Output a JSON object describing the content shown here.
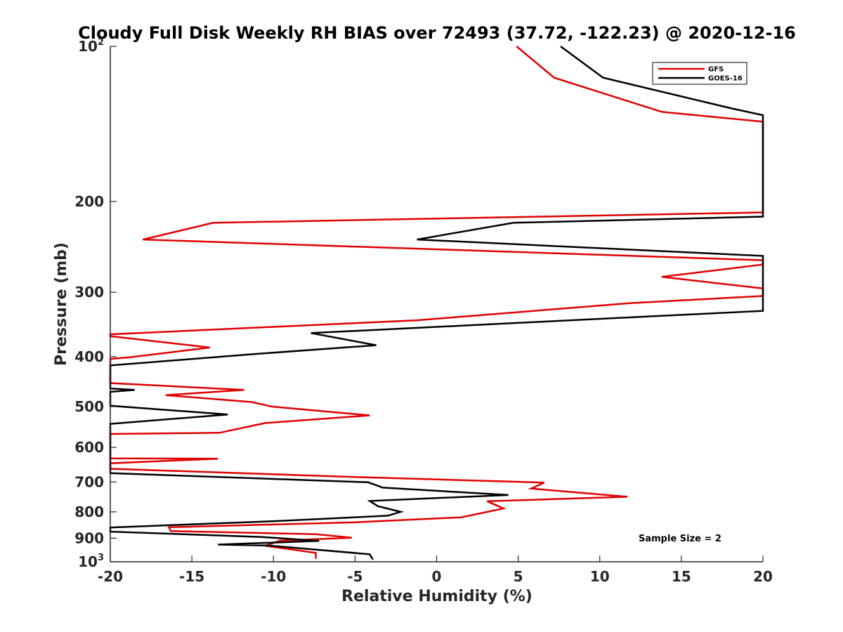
{
  "chart_data": {
    "type": "line",
    "title": "Cloudy Full Disk Weekly RH BIAS over 72493 (37.72, -122.23) @ 2020-12-16",
    "xlabel": "Relative Humidity (%)",
    "ylabel": "Pressure (mb)",
    "xlim": [
      -20,
      20
    ],
    "ylim": [
      100,
      1000
    ],
    "yscale": "log",
    "y_reversed": true,
    "x_ticks": [
      -20,
      -15,
      -10,
      -5,
      0,
      5,
      10,
      15,
      20
    ],
    "y_ticks": [
      {
        "value": 100,
        "base": "10",
        "exp": "2"
      },
      {
        "value": 200,
        "label": "200"
      },
      {
        "value": 300,
        "label": "300"
      },
      {
        "value": 400,
        "label": "400"
      },
      {
        "value": 500,
        "label": "500"
      },
      {
        "value": 600,
        "label": "600"
      },
      {
        "value": 700,
        "label": "700"
      },
      {
        "value": 800,
        "label": "800"
      },
      {
        "value": 900,
        "label": "900"
      },
      {
        "value": 1000,
        "base": "10",
        "exp": "3"
      }
    ],
    "grid": false,
    "legend_position": "top-right",
    "annotation": "Sample Size = 2",
    "series": [
      {
        "name": "GFS",
        "color": "#e00000",
        "points": [
          [
            4.9,
            100
          ],
          [
            7.2,
            115
          ],
          [
            13.8,
            134
          ],
          [
            20,
            140
          ],
          [
            20,
            210
          ],
          [
            -13.7,
            220
          ],
          [
            -18.0,
            237
          ],
          [
            20,
            260
          ],
          [
            20,
            265
          ],
          [
            13.8,
            280
          ],
          [
            20,
            295
          ],
          [
            20,
            305
          ],
          [
            11.8,
            315
          ],
          [
            -1.2,
            340
          ],
          [
            -20,
            362
          ],
          [
            -20,
            365
          ],
          [
            -13.9,
            384
          ],
          [
            -18.8,
            401
          ],
          [
            -20,
            404
          ],
          [
            -20,
            450
          ],
          [
            -11.8,
            464
          ],
          [
            -16.6,
            475
          ],
          [
            -11.3,
            490
          ],
          [
            -10.1,
            500
          ],
          [
            -4.1,
            520
          ],
          [
            -10.5,
            538
          ],
          [
            -13.3,
            562
          ],
          [
            -20,
            565
          ],
          [
            -20,
            630
          ],
          [
            -13.4,
            631
          ],
          [
            -20,
            644
          ],
          [
            -20,
            660
          ],
          [
            -4.9,
            685
          ],
          [
            6.6,
            702
          ],
          [
            5.8,
            721
          ],
          [
            11.7,
            748
          ],
          [
            3.1,
            763
          ],
          [
            4.1,
            788
          ],
          [
            1.5,
            820
          ],
          [
            -4.9,
            838
          ],
          [
            -16.4,
            857
          ],
          [
            -16.3,
            872
          ],
          [
            -7.4,
            884
          ],
          [
            -5.2,
            898
          ],
          [
            -9.6,
            910
          ],
          [
            -10.5,
            931
          ],
          [
            -7.4,
            961
          ],
          [
            -7.4,
            987
          ]
        ]
      },
      {
        "name": "GOES-16",
        "color": "#000000",
        "points": [
          [
            7.6,
            100
          ],
          [
            10.2,
            115
          ],
          [
            18.1,
            132
          ],
          [
            20,
            136
          ],
          [
            20,
            214
          ],
          [
            4.7,
            220
          ],
          [
            -1.2,
            237
          ],
          [
            20,
            255
          ],
          [
            20,
            326
          ],
          [
            13.2,
            334
          ],
          [
            -7.7,
            360
          ],
          [
            -3.7,
            380
          ],
          [
            -11.0,
            395
          ],
          [
            -20,
            416
          ],
          [
            -20,
            461
          ],
          [
            -18.5,
            464
          ],
          [
            -20,
            468
          ],
          [
            -20,
            498
          ],
          [
            -12.8,
            518
          ],
          [
            -20,
            540
          ],
          [
            -20,
            673
          ],
          [
            -4.2,
            701
          ],
          [
            -3.3,
            718
          ],
          [
            4.4,
            742
          ],
          [
            -4.1,
            762
          ],
          [
            -3.6,
            780
          ],
          [
            -2.2,
            800
          ],
          [
            -3.0,
            814
          ],
          [
            -9.9,
            834
          ],
          [
            -20,
            858
          ],
          [
            -20,
            874
          ],
          [
            -10.8,
            895
          ],
          [
            -7.2,
            911
          ],
          [
            -13.4,
            926
          ],
          [
            -10.3,
            930
          ],
          [
            -4.1,
            967
          ],
          [
            -3.9,
            990
          ]
        ]
      }
    ]
  }
}
